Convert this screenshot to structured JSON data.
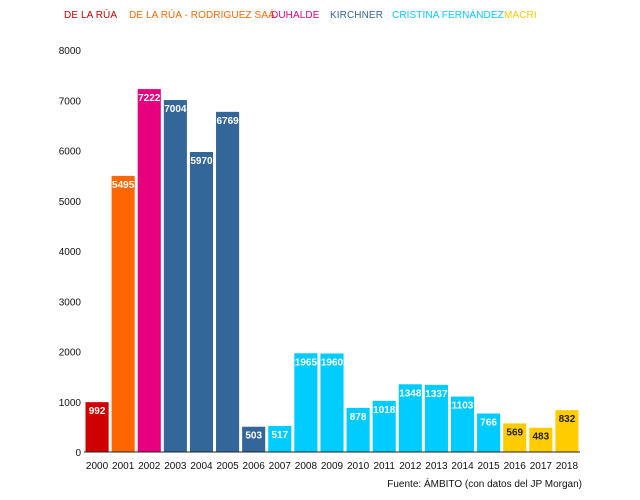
{
  "chart_data": {
    "type": "bar",
    "title": "",
    "xlabel": "",
    "ylabel": "",
    "ylim": [
      0,
      8000
    ],
    "yticks": [
      0,
      1000,
      2000,
      3000,
      4000,
      5000,
      6000,
      7000,
      8000
    ],
    "categories": [
      "2000",
      "2001",
      "2002",
      "2003",
      "2004",
      "2005",
      "2006",
      "2007",
      "2008",
      "2009",
      "2010",
      "2011",
      "2012",
      "2013",
      "2014",
      "2015",
      "2016",
      "2017",
      "2018"
    ],
    "values": [
      992,
      5495,
      7222,
      7004,
      5970,
      6769,
      503,
      517,
      1965,
      1960,
      878,
      1018,
      1348,
      1337,
      1103,
      766,
      569,
      483,
      832
    ],
    "bar_series": [
      0,
      1,
      2,
      3,
      3,
      3,
      3,
      4,
      4,
      4,
      4,
      4,
      4,
      4,
      4,
      4,
      5,
      5,
      5
    ],
    "legend": [
      {
        "name": "DE LA RÚA",
        "color": "#d00000"
      },
      {
        "name": "DE LA RÚA - RODRIGUEZ SAÁ",
        "color": "#ff6600"
      },
      {
        "name": "DUHALDE",
        "color": "#e6007e"
      },
      {
        "name": "KIRCHNER",
        "color": "#336699"
      },
      {
        "name": "CRISTINA FERNÁNDEZ",
        "color": "#00ccff"
      },
      {
        "name": "MACRI",
        "color": "#ffcc00"
      }
    ],
    "label_colors": [
      "#ffffff",
      "#ffffff",
      "#ffffff",
      "#ffffff",
      "#ffffff",
      "#ffffff",
      "#ffffff",
      "#ffffff",
      "#ffffff",
      "#ffffff",
      "#ffffff",
      "#ffffff",
      "#ffffff",
      "#ffffff",
      "#ffffff",
      "#ffffff",
      "#222222",
      "#222222",
      "#222222"
    ]
  },
  "source": "Fuente: ÁMBITO (con datos del JP Morgan)"
}
